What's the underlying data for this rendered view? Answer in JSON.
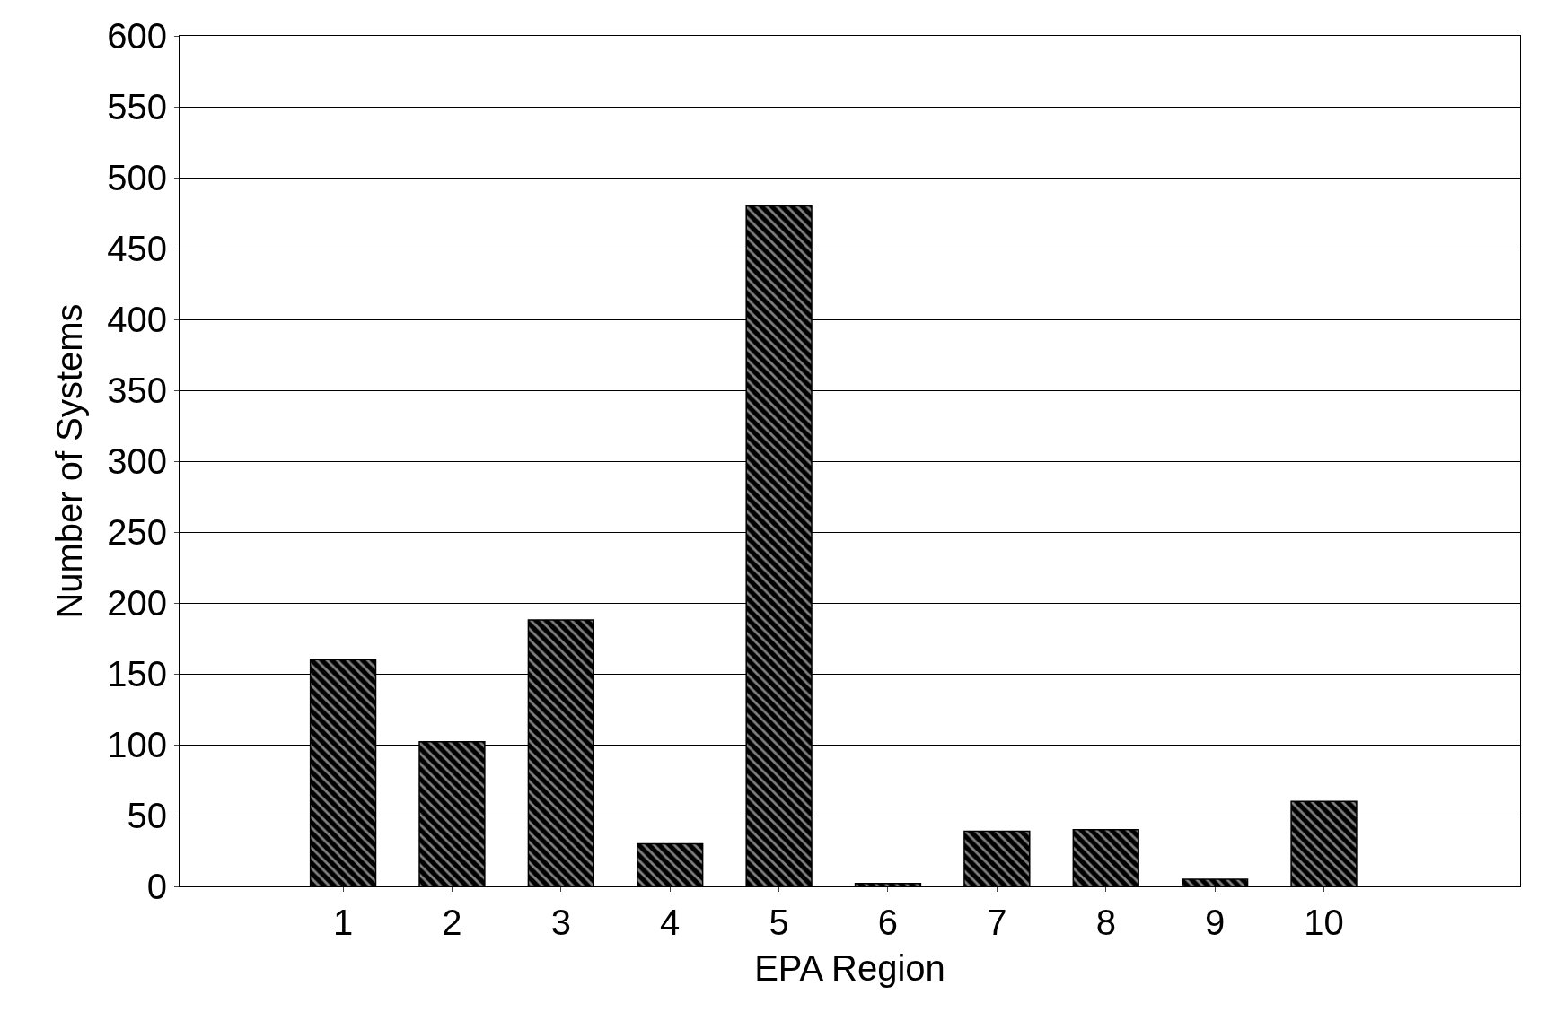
{
  "chart_data": {
    "type": "bar",
    "xlabel": "EPA Region",
    "ylabel": "Number of Systems",
    "categories": [
      "1",
      "2",
      "3",
      "4",
      "5",
      "6",
      "7",
      "8",
      "9",
      "10"
    ],
    "values": [
      160,
      102,
      188,
      30,
      480,
      2,
      39,
      40,
      5,
      60
    ],
    "color": "#000000",
    "ylim": [
      0,
      600
    ],
    "yticks": [
      0,
      50,
      100,
      150,
      200,
      250,
      300,
      350,
      400,
      450,
      500,
      550,
      600
    ],
    "grid": "y"
  }
}
